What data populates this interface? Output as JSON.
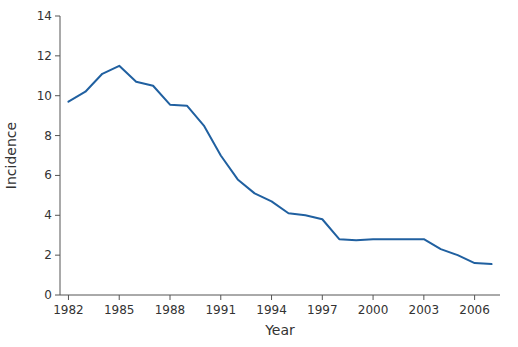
{
  "chart_data": {
    "type": "line",
    "x": [
      1982,
      1983,
      1984,
      1985,
      1986,
      1987,
      1988,
      1989,
      1990,
      1991,
      1992,
      1993,
      1994,
      1995,
      1996,
      1997,
      1998,
      1999,
      2000,
      2001,
      2002,
      2003,
      2004,
      2005,
      2006,
      2007
    ],
    "values": [
      9.7,
      10.2,
      11.1,
      11.5,
      10.7,
      10.5,
      9.55,
      9.5,
      8.5,
      7.0,
      5.8,
      5.1,
      4.7,
      4.1,
      4.0,
      3.8,
      2.8,
      2.75,
      2.8,
      2.8,
      2.8,
      2.8,
      2.3,
      2.0,
      1.6,
      1.55
    ],
    "color": "#2060a0",
    "xlabel": "Year",
    "ylabel": "Incidence",
    "xlim": [
      1981.5,
      2007.5
    ],
    "ylim": [
      0,
      14
    ],
    "xticks": [
      1982,
      1985,
      1988,
      1991,
      1994,
      1997,
      2000,
      2003,
      2006
    ],
    "yticks": [
      0,
      2,
      4,
      6,
      8,
      10,
      12,
      14
    ],
    "grid": false
  }
}
